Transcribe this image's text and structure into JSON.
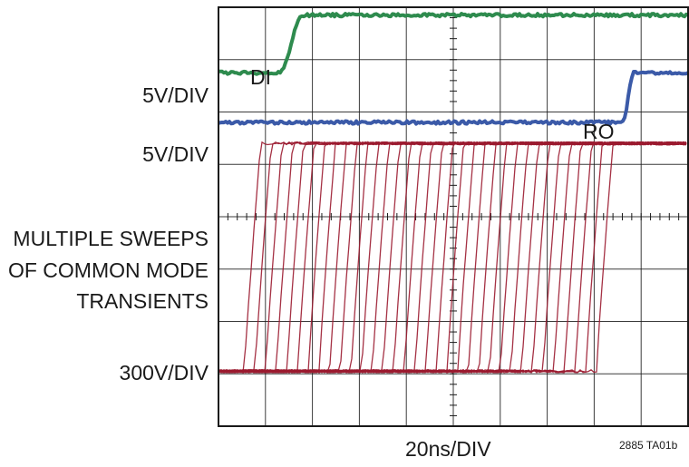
{
  "chart_data": {
    "type": "line",
    "title": "",
    "xlabel": "20ns/DIV",
    "x_divisions": 10,
    "y_divisions": 8,
    "grid": true,
    "traces": [
      {
        "name": "DI",
        "scale": "5V/DIV",
        "color": "#2e8b4e",
        "levels": {
          "low_div": 6.75,
          "high_div": 7.85
        },
        "edge": {
          "start_div": 1.3,
          "end_div": 1.8
        }
      },
      {
        "name": "RO",
        "scale": "5V/DIV",
        "color": "#3b5aa8",
        "levels": {
          "low_div": 5.8,
          "high_div": 6.75
        },
        "edge": {
          "start_div": 8.6,
          "end_div": 8.85
        }
      },
      {
        "name": "MULTIPLE SWEEPS OF COMMON MODE TRANSIENTS",
        "scale": "300V/DIV",
        "color": "#9b1b30",
        "levels": {
          "low_div": 1.05,
          "high_div": 5.4
        },
        "sweeps": 34,
        "first_edge_div": 0.55,
        "last_edge_div": 8.05,
        "edge_width_div": 0.35
      }
    ]
  },
  "labels": {
    "di": "DI",
    "ro": "RO",
    "scale_di": "5V/DIV",
    "scale_ro": "5V/DIV",
    "sweeps_line1": "MULTIPLE SWEEPS",
    "sweeps_line2": "OF COMMON MODE",
    "sweeps_line3": "TRANSIENTS",
    "scale_cm": "300V/DIV",
    "figure_id": "2885 TA01b"
  },
  "colors": {
    "grid": "#1a1a1a",
    "background": "#ffffff"
  }
}
